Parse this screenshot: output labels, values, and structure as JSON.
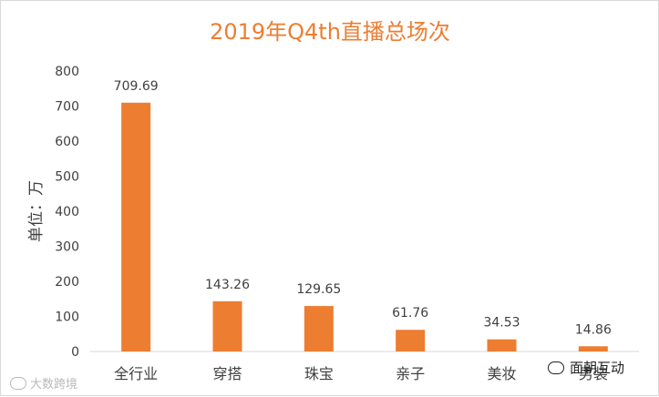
{
  "chart_data": {
    "type": "bar",
    "title": "2019年Q4th直播总场次",
    "ylabel": "单位：万",
    "xlabel": "",
    "categories": [
      "全行业",
      "穿搭",
      "珠宝",
      "亲子",
      "美妆",
      "男装"
    ],
    "values": [
      709.69,
      143.26,
      129.65,
      61.76,
      34.53,
      14.86
    ],
    "value_labels": [
      "709.69",
      "143.26",
      "129.65",
      "61.76",
      "34.53",
      "14.86"
    ],
    "yticks": [
      "0",
      "100",
      "200",
      "300",
      "400",
      "500",
      "600",
      "700",
      "800"
    ],
    "ylim": [
      0,
      800
    ],
    "grid": false,
    "legend": "none"
  },
  "colors": {
    "bar": "#ED7D31",
    "title": "#ED7D31",
    "axis": "#d9d9d9",
    "text": "#404040"
  },
  "watermarks": {
    "left": "大数跨境",
    "right": "面朝互动"
  }
}
